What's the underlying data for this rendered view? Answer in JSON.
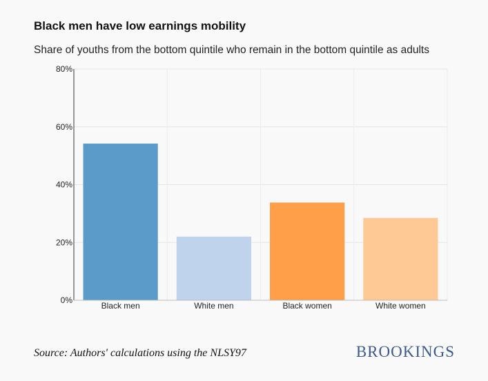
{
  "chart_data": {
    "type": "bar",
    "title": "Black men have low earnings mobility",
    "subtitle": "Share of youths from the bottom quintile who remain in the bottom quintile as adults",
    "categories": [
      "Black men",
      "White men",
      "Black women",
      "White women"
    ],
    "values": [
      54.2,
      22.0,
      33.8,
      28.5
    ],
    "colors": [
      "#5b9bc9",
      "#bfd3ec",
      "#ff9f4a",
      "#ffc996"
    ],
    "ylim": [
      0,
      80
    ],
    "yticks": [
      "0%",
      "20%",
      "40%",
      "60%",
      "80%"
    ],
    "grid": true
  },
  "source": "Source: Authors' calculations using the NLSY97",
  "logo": "BROOKINGS"
}
